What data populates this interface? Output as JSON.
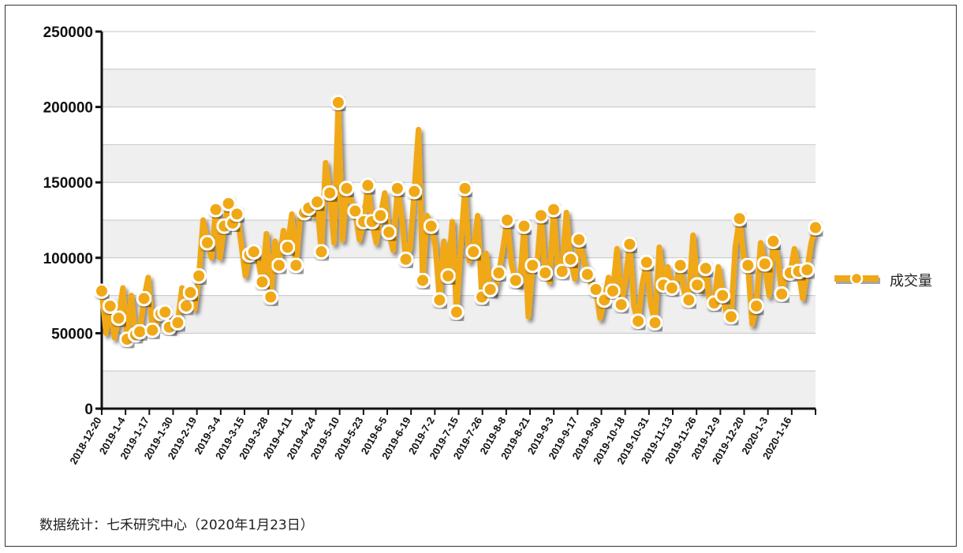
{
  "chart_data": {
    "type": "line",
    "title": "",
    "xlabel": "",
    "ylabel": "",
    "ylim": [
      0,
      250000
    ],
    "yticks": [
      0,
      50000,
      100000,
      150000,
      200000,
      250000
    ],
    "ytick_labels": [
      "0",
      "50000",
      "100000",
      "150000",
      "200000",
      "250000"
    ],
    "x_tick_labels": [
      "2018-12-20",
      "2019-1-4",
      "2019-1-17",
      "2019-1-30",
      "2019-2-19",
      "2019-3-4",
      "2019-3-15",
      "2019-3-28",
      "2019-4-11",
      "2019-4-24",
      "2019-5-10",
      "2019-5-23",
      "2019-6-5",
      "2019-6-19",
      "2019-7-2",
      "2019-7-15",
      "2019-7-26",
      "2019-8-8",
      "2019-8-21",
      "2019-9-3",
      "2019-9-17",
      "2019-9-30",
      "2019-10-18",
      "2019-10-31",
      "2019-11-13",
      "2019-11-26",
      "2019-12-9",
      "2019-12-20",
      "2020-1-3",
      "2020-1-16"
    ],
    "grid": true,
    "legend_position": "right",
    "series": [
      {
        "name": "成交量",
        "color": "#f0a818",
        "values": [
          78000,
          50000,
          68000,
          47000,
          60000,
          80000,
          46000,
          75000,
          49000,
          51000,
          73000,
          87000,
          52000,
          57000,
          63000,
          64000,
          54000,
          53000,
          57000,
          80000,
          68000,
          77000,
          66000,
          88000,
          125000,
          110000,
          100000,
          132000,
          100000,
          121000,
          136000,
          123000,
          129000,
          110000,
          88000,
          102000,
          104000,
          99000,
          84000,
          116000,
          74000,
          111000,
          95000,
          118000,
          107000,
          129000,
          95000,
          128000,
          130000,
          133000,
          128000,
          137000,
          104000,
          163000,
          143000,
          110000,
          203000,
          112000,
          146000,
          138000,
          131000,
          112000,
          124000,
          148000,
          124000,
          110000,
          128000,
          143000,
          117000,
          105000,
          146000,
          128000,
          99000,
          106000,
          144000,
          185000,
          85000,
          128000,
          121000,
          108000,
          72000,
          111000,
          88000,
          124000,
          64000,
          108000,
          146000,
          98000,
          104000,
          128000,
          74000,
          103000,
          79000,
          77000,
          90000,
          106000,
          125000,
          96000,
          85000,
          82000,
          121000,
          61000,
          95000,
          93000,
          128000,
          90000,
          84000,
          132000,
          93000,
          91000,
          130000,
          99000,
          86000,
          112000,
          100000,
          89000,
          82000,
          79000,
          60000,
          72000,
          87000,
          78000,
          106000,
          69000,
          86000,
          109000,
          68000,
          58000,
          83000,
          97000,
          69000,
          57000,
          107000,
          82000,
          94000,
          80000,
          84000,
          95000,
          76000,
          72000,
          115000,
          82000,
          78000,
          93000,
          69000,
          70000,
          94000,
          75000,
          62000,
          61000,
          107000,
          126000,
          100000,
          95000,
          56000,
          68000,
          110000,
          96000,
          75000,
          111000,
          101000,
          76000,
          91000,
          90000,
          106000,
          91000,
          73000,
          92000,
          110000,
          120000
        ]
      }
    ],
    "marker_indices": [
      0,
      2,
      4,
      6,
      8,
      9,
      10,
      12,
      14,
      15,
      16,
      18,
      20,
      21,
      23,
      25,
      27,
      29,
      30,
      31,
      32,
      35,
      36,
      38,
      40,
      42,
      44,
      46,
      48,
      49,
      51,
      52,
      54,
      56,
      58,
      60,
      62,
      63,
      64,
      66,
      68,
      70,
      72,
      74,
      76,
      78,
      80,
      82,
      84,
      86,
      88,
      90,
      92,
      94,
      96,
      98,
      100,
      102,
      104,
      105,
      107,
      109,
      111,
      113,
      115,
      117,
      119,
      121,
      123,
      125,
      127,
      129,
      131,
      133,
      135,
      137,
      139,
      141,
      143,
      145,
      147,
      149,
      151,
      153,
      155,
      157,
      159,
      161,
      163,
      165,
      167,
      169,
      171,
      173,
      175,
      177
    ]
  },
  "legend": {
    "label": "成交量"
  },
  "source_note": "数据统计：七禾研究中心（2020年1月23日）"
}
